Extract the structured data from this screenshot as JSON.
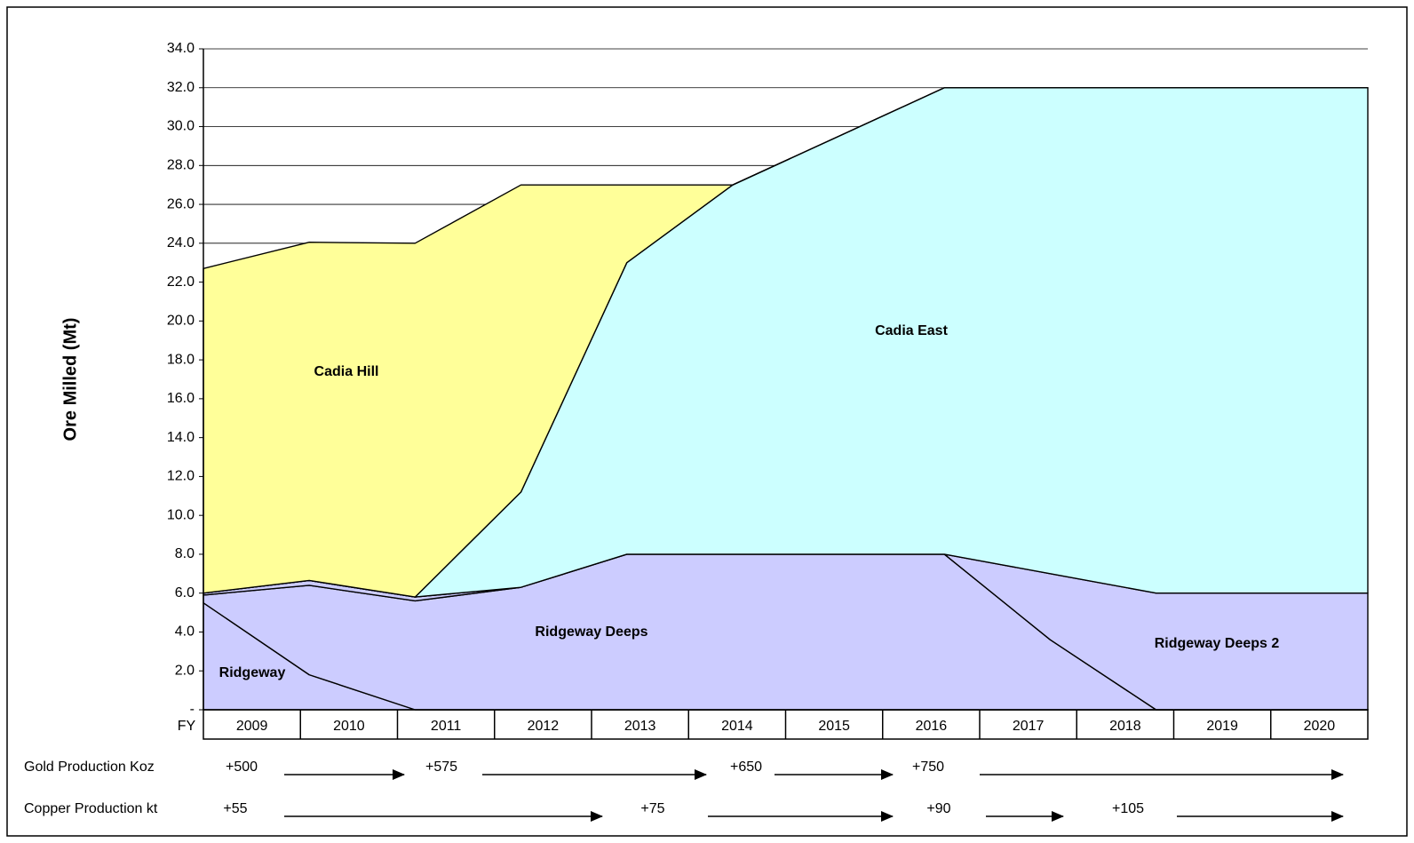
{
  "chart_data": {
    "type": "stacked_area",
    "y_label": "Ore Milled (Mt)",
    "x_label": "FY",
    "categories": [
      "2009",
      "2010",
      "2011",
      "2012",
      "2013",
      "2014",
      "2015",
      "2016",
      "2017",
      "2018",
      "2019",
      "2020"
    ],
    "series": [
      {
        "name": "Ridgeway",
        "color": "#ccccff",
        "values": [
          5.5,
          1.8,
          0,
          0,
          0,
          0,
          0,
          0,
          0,
          0,
          0,
          0
        ]
      },
      {
        "name": "Ridgeway Deeps",
        "color": "#ccccff",
        "values": [
          0.4,
          4.6,
          5.6,
          6.3,
          8,
          8,
          8,
          8,
          3.6,
          0,
          0,
          0
        ]
      },
      {
        "color": "#ccccff",
        "values": [
          0.1,
          0.25,
          0.2,
          0,
          0,
          0,
          0,
          0,
          0,
          0,
          0,
          0
        ]
      },
      {
        "name": "Ridgeway Deeps 2",
        "color": "#ccccff",
        "values": [
          0,
          0,
          0,
          0,
          0,
          0,
          0,
          0,
          3.4,
          6,
          6,
          6
        ]
      },
      {
        "name": "Cadia East",
        "color": "#ccffff",
        "values": [
          0,
          0,
          0,
          4.9,
          15,
          19,
          21.5,
          24,
          25,
          26,
          26,
          26
        ]
      },
      {
        "name": "Cadia Hill",
        "color": "#ffff99",
        "values": [
          16.7,
          17.4,
          18.2,
          15.8,
          4,
          0,
          0,
          0,
          0,
          0,
          0,
          0
        ]
      }
    ],
    "ylim": [
      0,
      34
    ],
    "yticks": [
      {
        "value": 0,
        "label": "-"
      },
      {
        "value": 2,
        "label": "2.0"
      },
      {
        "value": 4,
        "label": "4.0"
      },
      {
        "value": 6,
        "label": "6.0"
      },
      {
        "value": 8,
        "label": "8.0"
      },
      {
        "value": 10,
        "label": "10.0"
      },
      {
        "value": 12,
        "label": "12.0"
      },
      {
        "value": 14,
        "label": "14.0"
      },
      {
        "value": 16,
        "label": "16.0"
      },
      {
        "value": 18,
        "label": "18.0"
      },
      {
        "value": 20,
        "label": "20.0"
      },
      {
        "value": 22,
        "label": "22.0"
      },
      {
        "value": 24,
        "label": "24.0"
      },
      {
        "value": 26,
        "label": "26.0"
      },
      {
        "value": 28,
        "label": "28.0"
      },
      {
        "value": 30,
        "label": "30.0"
      },
      {
        "value": 32,
        "label": "32.0"
      },
      {
        "value": 34,
        "label": "34.0"
      }
    ],
    "grid": true,
    "production": [
      {
        "label": "Gold Production Koz",
        "steps": [
          "+500",
          "+575",
          "+650",
          "+750"
        ]
      },
      {
        "label": "Copper Production kt",
        "steps": [
          "+55",
          "+75",
          "+90",
          "+105"
        ]
      }
    ]
  }
}
